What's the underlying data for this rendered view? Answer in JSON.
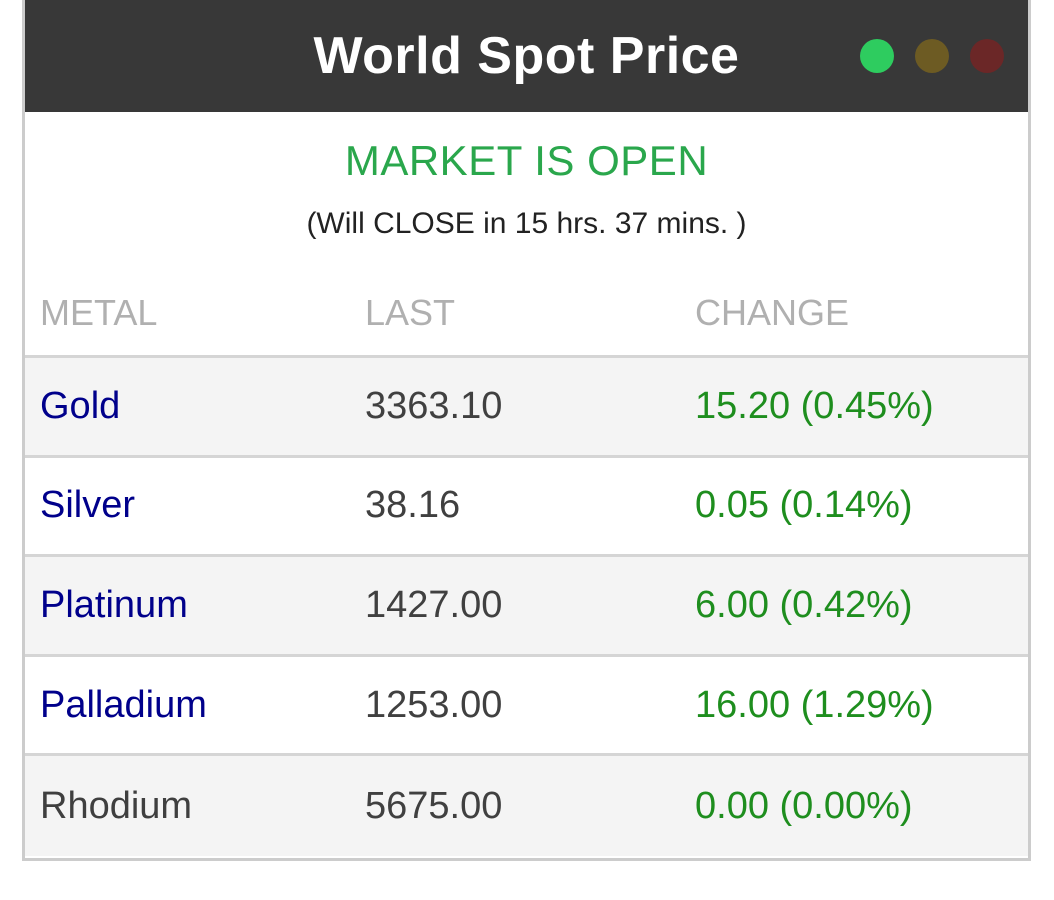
{
  "header": {
    "title": "World Spot Price",
    "status_dots": [
      {
        "name": "green-dot",
        "color": "#2ecc5f"
      },
      {
        "name": "yellow-dot",
        "color": "#6d5b23"
      },
      {
        "name": "red-dot",
        "color": "#6b2727"
      }
    ]
  },
  "market_status": {
    "status": "MARKET IS OPEN",
    "detail": "(Will CLOSE in 15 hrs. 37 mins. )"
  },
  "table": {
    "columns": {
      "metal": "METAL",
      "last": "LAST",
      "change": "CHANGE"
    },
    "rows": [
      {
        "metal": "Gold",
        "last": "3363.10",
        "change": "15.20 (0.45%)"
      },
      {
        "metal": "Silver",
        "last": "38.16",
        "change": "0.05 (0.14%)"
      },
      {
        "metal": "Platinum",
        "last": "1427.00",
        "change": "6.00 (0.42%)"
      },
      {
        "metal": "Palladium",
        "last": "1253.00",
        "change": "16.00 (1.29%)"
      },
      {
        "metal": "Rhodium",
        "last": "5675.00",
        "change": "0.00 (0.00%)"
      }
    ]
  },
  "colors": {
    "titlebar_bg": "#383838",
    "open_status_green": "#2aa74c",
    "metal_link_blue": "#00008b",
    "change_positive_green": "#1e8e1e",
    "alt_row_bg": "#f4f4f4",
    "border_gray": "#d5d5d5"
  }
}
